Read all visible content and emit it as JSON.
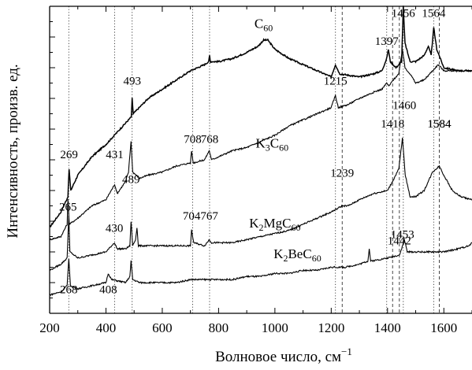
{
  "chart_data": {
    "type": "line",
    "title": "",
    "xlabel": "Волновое число, см",
    "xlabel_sup": "−1",
    "ylabel": "Интенсивность, произв. ед.",
    "xlim": [
      200,
      1700
    ],
    "ylim": [
      0,
      100
    ],
    "y_ticks_numbered": false,
    "grid": false,
    "x_ticks": [
      {
        "value": 200,
        "label": "200"
      },
      {
        "value": 400,
        "label": "400"
      },
      {
        "value": 600,
        "label": "600"
      },
      {
        "value": 800,
        "label": "800"
      },
      {
        "value": 1000,
        "label": "1000"
      },
      {
        "value": 1200,
        "label": "1200"
      },
      {
        "value": 1400,
        "label": "1400"
      },
      {
        "value": 1600,
        "label": "1600"
      }
    ],
    "reference_lines": [
      {
        "x": 268,
        "style": "dotted"
      },
      {
        "x": 431,
        "style": "dotted"
      },
      {
        "x": 493,
        "style": "dotted"
      },
      {
        "x": 708,
        "style": "dotted"
      },
      {
        "x": 768,
        "style": "dotted"
      },
      {
        "x": 1215,
        "style": "dotted"
      },
      {
        "x": 1239,
        "style": "dashed"
      },
      {
        "x": 1397,
        "style": "dotted"
      },
      {
        "x": 1418,
        "style": "dashed"
      },
      {
        "x": 1442,
        "style": "dashed"
      },
      {
        "x": 1456,
        "style": "dotted"
      },
      {
        "x": 1564,
        "style": "dotted"
      },
      {
        "x": 1584,
        "style": "dashed"
      }
    ],
    "series": [
      {
        "name": "C₆₀",
        "label": {
          "base": "C",
          "sub": "60",
          "x": 960,
          "y": 93
        },
        "curve": [
          [
            200,
            28
          ],
          [
            240,
            33
          ],
          [
            265,
            38
          ],
          [
            269,
            47
          ],
          [
            275,
            40
          ],
          [
            300,
            45
          ],
          [
            350,
            51
          ],
          [
            400,
            55
          ],
          [
            450,
            60
          ],
          [
            490,
            64
          ],
          [
            493,
            70
          ],
          [
            497,
            65
          ],
          [
            550,
            70
          ],
          [
            600,
            73
          ],
          [
            650,
            76
          ],
          [
            700,
            79
          ],
          [
            750,
            81
          ],
          [
            765,
            82
          ],
          [
            768,
            84
          ],
          [
            771,
            82
          ],
          [
            800,
            82
          ],
          [
            850,
            83
          ],
          [
            900,
            85
          ],
          [
            940,
            87
          ],
          [
            960,
            89
          ],
          [
            975,
            89
          ],
          [
            1000,
            86
          ],
          [
            1050,
            83
          ],
          [
            1100,
            81
          ],
          [
            1150,
            79
          ],
          [
            1200,
            77
          ],
          [
            1215,
            81
          ],
          [
            1230,
            78
          ],
          [
            1300,
            77
          ],
          [
            1350,
            78
          ],
          [
            1380,
            79
          ],
          [
            1397,
            83
          ],
          [
            1403,
            86
          ],
          [
            1410,
            82
          ],
          [
            1430,
            80
          ],
          [
            1450,
            82
          ],
          [
            1456,
            100
          ],
          [
            1462,
            88
          ],
          [
            1480,
            82
          ],
          [
            1500,
            82
          ],
          [
            1530,
            84
          ],
          [
            1545,
            87
          ],
          [
            1555,
            84
          ],
          [
            1564,
            93
          ],
          [
            1575,
            86
          ],
          [
            1600,
            80
          ],
          [
            1650,
            79
          ],
          [
            1700,
            79
          ]
        ],
        "peaks": [
          {
            "x": 269,
            "text": "269",
            "y": 50.5
          },
          {
            "x": 493,
            "text": "493",
            "y": 74.5
          },
          {
            "x": 1215,
            "text": "1215",
            "y": 74.5
          },
          {
            "x": 1397,
            "text": "1397",
            "y": 87.5
          },
          {
            "x": 1456,
            "text": "1456",
            "y": 96.5
          },
          {
            "x": 1564,
            "text": "1564",
            "y": 96.5
          }
        ]
      },
      {
        "name": "K₃C₆₀",
        "label": {
          "base": "K",
          "sub1": "3",
          "mid": "C",
          "sub2": "60",
          "x": 990,
          "y": 54
        },
        "curve": [
          [
            200,
            24
          ],
          [
            240,
            25
          ],
          [
            262,
            29
          ],
          [
            265,
            37
          ],
          [
            270,
            29
          ],
          [
            300,
            31
          ],
          [
            350,
            35
          ],
          [
            400,
            37
          ],
          [
            431,
            42
          ],
          [
            440,
            39
          ],
          [
            470,
            43
          ],
          [
            480,
            46
          ],
          [
            489,
            56
          ],
          [
            495,
            46
          ],
          [
            520,
            44
          ],
          [
            550,
            45
          ],
          [
            600,
            46
          ],
          [
            650,
            48
          ],
          [
            700,
            49
          ],
          [
            704,
            53
          ],
          [
            710,
            49
          ],
          [
            750,
            50
          ],
          [
            767,
            53
          ],
          [
            775,
            50
          ],
          [
            800,
            51
          ],
          [
            850,
            53
          ],
          [
            900,
            54
          ],
          [
            950,
            56
          ],
          [
            1000,
            58
          ],
          [
            1050,
            61
          ],
          [
            1100,
            63
          ],
          [
            1150,
            65
          ],
          [
            1200,
            67
          ],
          [
            1215,
            71
          ],
          [
            1225,
            67
          ],
          [
            1260,
            68
          ],
          [
            1300,
            70
          ],
          [
            1350,
            72
          ],
          [
            1380,
            73
          ],
          [
            1397,
            75
          ],
          [
            1405,
            74
          ],
          [
            1420,
            76
          ],
          [
            1440,
            78
          ],
          [
            1453,
            86
          ],
          [
            1462,
            80
          ],
          [
            1480,
            78
          ],
          [
            1500,
            75
          ],
          [
            1530,
            76
          ],
          [
            1560,
            79
          ],
          [
            1580,
            81
          ],
          [
            1600,
            79
          ],
          [
            1650,
            79
          ],
          [
            1700,
            79
          ]
        ],
        "peaks": [
          {
            "x": 265,
            "text": "265",
            "y": 33.5
          },
          {
            "x": 431,
            "text": "431",
            "y": 50.5
          },
          {
            "x": 489,
            "text": "489",
            "y": 42.5
          },
          {
            "x": 708,
            "text": "708",
            "y": 55.5
          },
          {
            "x": 768,
            "text": "768",
            "y": 55.5
          },
          {
            "x": 1460,
            "text": "1460",
            "y": 66.5
          }
        ]
      },
      {
        "name": "K₂MgC₆₀",
        "label": {
          "base": "K",
          "sub1": "2",
          "mid": "MgC",
          "sub2": "60",
          "x": 1000,
          "y": 28
        },
        "curve": [
          [
            200,
            14
          ],
          [
            240,
            16
          ],
          [
            262,
            18
          ],
          [
            268,
            32
          ],
          [
            272,
            20
          ],
          [
            300,
            18
          ],
          [
            350,
            19
          ],
          [
            400,
            20
          ],
          [
            430,
            23
          ],
          [
            440,
            21
          ],
          [
            470,
            21
          ],
          [
            485,
            22
          ],
          [
            489,
            30
          ],
          [
            495,
            22
          ],
          [
            505,
            24
          ],
          [
            510,
            28
          ],
          [
            515,
            22
          ],
          [
            550,
            22
          ],
          [
            600,
            22
          ],
          [
            650,
            22
          ],
          [
            700,
            22
          ],
          [
            704,
            27
          ],
          [
            712,
            23
          ],
          [
            750,
            22
          ],
          [
            767,
            24
          ],
          [
            775,
            23
          ],
          [
            800,
            23
          ],
          [
            850,
            23
          ],
          [
            900,
            24
          ],
          [
            950,
            25
          ],
          [
            1000,
            26
          ],
          [
            1050,
            27
          ],
          [
            1100,
            29
          ],
          [
            1150,
            31
          ],
          [
            1200,
            33
          ],
          [
            1239,
            35
          ],
          [
            1260,
            35
          ],
          [
            1300,
            37
          ],
          [
            1350,
            39
          ],
          [
            1400,
            40
          ],
          [
            1418,
            43
          ],
          [
            1440,
            47
          ],
          [
            1453,
            57
          ],
          [
            1463,
            45
          ],
          [
            1480,
            38
          ],
          [
            1500,
            38
          ],
          [
            1530,
            40
          ],
          [
            1560,
            46
          ],
          [
            1584,
            48
          ],
          [
            1600,
            45
          ],
          [
            1630,
            40
          ],
          [
            1660,
            38
          ],
          [
            1700,
            37
          ]
        ],
        "peaks": [
          {
            "x": 430,
            "text": "430",
            "y": 26.5
          },
          {
            "x": 704,
            "text": "704",
            "y": 30.5
          },
          {
            "x": 767,
            "text": "767",
            "y": 30.5
          },
          {
            "x": 1239,
            "text": "1239",
            "y": 44.5
          },
          {
            "x": 1418,
            "text": "1418",
            "y": 60.5
          },
          {
            "x": 1453,
            "text": "1453",
            "y": 24.5
          },
          {
            "x": 1584,
            "text": "1584",
            "y": 60.5
          },
          {
            "x": 1584,
            "text": "1584",
            "y": 60.5
          }
        ]
      },
      {
        "name": "K₂BeC₆₀",
        "label": {
          "base": "K",
          "sub1": "2",
          "mid": "BeC",
          "sub2": "60",
          "x": 1080,
          "y": 18
        },
        "curve": [
          [
            200,
            6
          ],
          [
            240,
            7
          ],
          [
            262,
            9
          ],
          [
            268,
            18
          ],
          [
            274,
            9
          ],
          [
            300,
            8
          ],
          [
            350,
            9
          ],
          [
            400,
            10
          ],
          [
            408,
            13
          ],
          [
            420,
            11
          ],
          [
            470,
            10
          ],
          [
            485,
            12
          ],
          [
            489,
            17
          ],
          [
            495,
            11
          ],
          [
            520,
            10
          ],
          [
            560,
            10
          ],
          [
            600,
            10
          ],
          [
            650,
            10
          ],
          [
            700,
            11
          ],
          [
            750,
            11
          ],
          [
            800,
            11
          ],
          [
            850,
            11
          ],
          [
            900,
            12
          ],
          [
            950,
            12
          ],
          [
            1000,
            13
          ],
          [
            1050,
            13
          ],
          [
            1100,
            14
          ],
          [
            1150,
            14
          ],
          [
            1200,
            15
          ],
          [
            1250,
            15
          ],
          [
            1300,
            16
          ],
          [
            1330,
            17
          ],
          [
            1335,
            21
          ],
          [
            1340,
            17
          ],
          [
            1400,
            18
          ],
          [
            1442,
            19
          ],
          [
            1450,
            21
          ],
          [
            1460,
            24
          ],
          [
            1470,
            20
          ],
          [
            1500,
            20
          ],
          [
            1550,
            20
          ],
          [
            1600,
            20
          ],
          [
            1650,
            21
          ],
          [
            1690,
            22
          ],
          [
            1700,
            23
          ]
        ],
        "peaks": [
          {
            "x": 268,
            "text": "268",
            "y": 6.5
          },
          {
            "x": 408,
            "text": "408",
            "y": 6.5
          },
          {
            "x": 1442,
            "text": "1442",
            "y": 22.5
          }
        ]
      }
    ]
  }
}
